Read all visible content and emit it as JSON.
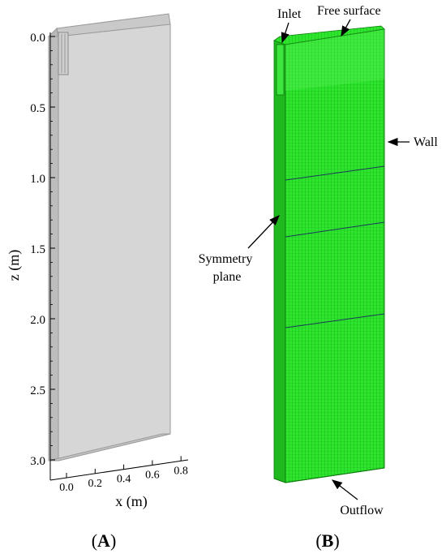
{
  "panel_a": {
    "label_open": "(",
    "label_letter": "A",
    "label_close": ")",
    "z_axis": {
      "label": "z (m)",
      "ticks": [
        "0.0",
        "0.5",
        "1.0",
        "1.5",
        "2.0",
        "2.5",
        "3.0"
      ]
    },
    "x_axis": {
      "label": "x (m)",
      "ticks": [
        "0.0",
        "0.2",
        "0.4",
        "0.6",
        "0.8"
      ]
    }
  },
  "panel_b": {
    "label_open": "(",
    "label_letter": "B",
    "label_close": ")",
    "annotations": {
      "inlet": "Inlet",
      "free_surface": "Free surface",
      "wall": "Wall",
      "symmetry_line1": "Symmetry",
      "symmetry_line2": "plane",
      "outflow": "Outflow"
    }
  },
  "colors": {
    "tank_face": "#d3d3d3",
    "tank_edge": "#a6a6a6",
    "mesh_green": "#22dd22",
    "mesh_dark": "#119911",
    "mesh_line": "#0e8a0e"
  }
}
